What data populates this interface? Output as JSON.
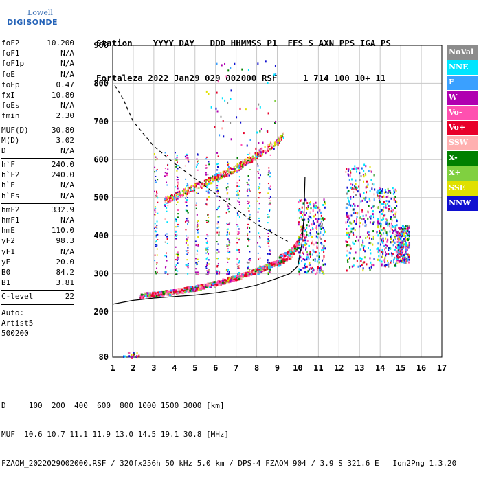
{
  "logo": {
    "top": "Lowell",
    "bottom": "DIGISONDE"
  },
  "header": {
    "line1": "Station    YYYY DAY   DDD HHMMSS P1  FFS S AXN PPS IGA PS",
    "line2": "Fortaleza 2022 Jan29 029 002000 RSF     1 714 100 10+ 11"
  },
  "params": [
    {
      "k": "foF2",
      "v": "10.200"
    },
    {
      "k": "foF1",
      "v": "N/A"
    },
    {
      "k": "foF1p",
      "v": "N/A"
    },
    {
      "k": "foE",
      "v": "N/A"
    },
    {
      "k": "foEp",
      "v": "0.47"
    },
    {
      "k": "fxI",
      "v": "10.80"
    },
    {
      "k": "foEs",
      "v": "N/A"
    },
    {
      "k": "fmin",
      "v": "2.30"
    },
    {
      "sep": true
    },
    {
      "k": "MUF(D)",
      "v": "30.80"
    },
    {
      "k": "M(D)",
      "v": "3.02"
    },
    {
      "k": "D",
      "v": "N/A"
    },
    {
      "sep": true
    },
    {
      "k": "h`F",
      "v": "240.0"
    },
    {
      "k": "h`F2",
      "v": "240.0"
    },
    {
      "k": "h`E",
      "v": "N/A"
    },
    {
      "k": "h`Es",
      "v": "N/A"
    },
    {
      "sep": true
    },
    {
      "k": "hmF2",
      "v": "332.9"
    },
    {
      "k": "hmF1",
      "v": "N/A"
    },
    {
      "k": "hmE",
      "v": "110.0"
    },
    {
      "k": "yF2",
      "v": "98.3"
    },
    {
      "k": "yF1",
      "v": "N/A"
    },
    {
      "k": "yE",
      "v": "20.0"
    },
    {
      "k": "B0",
      "v": "84.2"
    },
    {
      "k": "B1",
      "v": "3.81"
    },
    {
      "sep": true
    },
    {
      "k": "C-level",
      "v": "22"
    },
    {
      "sep": true
    }
  ],
  "auto": {
    "l1": "Auto:",
    "l2": "Artist5",
    "l3": "500200"
  },
  "legend": [
    {
      "label": "NoVal",
      "color": "#8c8c8c"
    },
    {
      "label": "NNE",
      "color": "#00e5ff"
    },
    {
      "label": "E",
      "color": "#3aa0ff"
    },
    {
      "label": "W",
      "color": "#b000b0"
    },
    {
      "label": "Vo-",
      "color": "#ff50b0"
    },
    {
      "label": "Vo+",
      "color": "#e8002a"
    },
    {
      "label": "SSW",
      "color": "#ffb0b0"
    },
    {
      "label": "X-",
      "color": "#008000"
    },
    {
      "label": "X+",
      "color": "#80d040"
    },
    {
      "label": "SSE",
      "color": "#e0e000"
    },
    {
      "label": "NNW",
      "color": "#1010d0"
    }
  ],
  "footer": {
    "l1": "D     100  200  400  600  800 1000 1500 3000 [km]",
    "l2": "MUF  10.6 10.7 11.1 11.9 13.0 14.5 19.1 30.8 [MHz]",
    "l3": "FZAOM_2022029002000.RSF / 320fx256h 50 kHz 5.0 km / DPS-4 FZAOM 904 / 3.9 S 321.6 E   Ion2Png 1.3.20"
  },
  "chart_data": {
    "type": "scatter",
    "xlim": [
      1,
      17
    ],
    "ylim": [
      80,
      900
    ],
    "xticks": [
      1,
      2,
      3,
      4,
      5,
      6,
      7,
      8,
      9,
      10,
      11,
      12,
      13,
      14,
      15,
      16,
      17
    ],
    "yticks": [
      80,
      200,
      300,
      400,
      500,
      600,
      700,
      800,
      900
    ],
    "grid": true,
    "series": [
      {
        "name": "NoVal",
        "color": "#8c8c8c"
      },
      {
        "name": "NNE",
        "color": "#00e5ff"
      },
      {
        "name": "E",
        "color": "#3aa0ff"
      },
      {
        "name": "W",
        "color": "#b000b0"
      },
      {
        "name": "Vo-",
        "color": "#ff50b0"
      },
      {
        "name": "Vo+",
        "color": "#e8002a"
      },
      {
        "name": "SSW",
        "color": "#ffb0b0"
      },
      {
        "name": "X-",
        "color": "#008000"
      },
      {
        "name": "X+",
        "color": "#80d040"
      },
      {
        "name": "SSE",
        "color": "#e0e000"
      },
      {
        "name": "NNW",
        "color": "#1010d0"
      }
    ],
    "ordinary_trace": [
      [
        2.3,
        242
      ],
      [
        3,
        246
      ],
      [
        4,
        252
      ],
      [
        5,
        262
      ],
      [
        6,
        274
      ],
      [
        7,
        290
      ],
      [
        8,
        308
      ],
      [
        9,
        330
      ],
      [
        9.6,
        350
      ],
      [
        10.0,
        375
      ],
      [
        10.2,
        420
      ]
    ],
    "extraordinary_trace": [
      [
        3.5,
        495
      ],
      [
        4,
        505
      ],
      [
        5,
        530
      ],
      [
        6,
        555
      ],
      [
        7,
        580
      ],
      [
        8,
        615
      ],
      [
        9,
        650
      ],
      [
        9.3,
        668
      ]
    ],
    "profile_curve": [
      [
        1,
        220
      ],
      [
        2,
        230
      ],
      [
        3,
        236
      ],
      [
        4,
        240
      ],
      [
        5,
        244
      ],
      [
        6,
        250
      ],
      [
        7,
        258
      ],
      [
        8,
        270
      ],
      [
        9,
        288
      ],
      [
        9.6,
        300
      ],
      [
        10.0,
        320
      ],
      [
        10.2,
        380
      ],
      [
        10.3,
        450
      ],
      [
        10.35,
        555
      ]
    ],
    "dashed_curve": [
      [
        1.1,
        795
      ],
      [
        1.5,
        760
      ],
      [
        2,
        700
      ],
      [
        3,
        635
      ],
      [
        4,
        590
      ],
      [
        5,
        550
      ],
      [
        6,
        510
      ],
      [
        7,
        470
      ],
      [
        8,
        430
      ],
      [
        9,
        400
      ],
      [
        9.5,
        385
      ]
    ],
    "spread_clusters": [
      {
        "x": [
          10,
          11.3
        ],
        "y": [
          300,
          500
        ]
      },
      {
        "x": [
          12.3,
          13.7
        ],
        "y": [
          310,
          590
        ]
      },
      {
        "x": [
          13.8,
          14.8
        ],
        "y": [
          320,
          530
        ]
      },
      {
        "x": [
          14.8,
          15.4
        ],
        "y": [
          330,
          430
        ]
      },
      {
        "x": [
          3,
          9
        ],
        "y": [
          300,
          620
        ]
      },
      {
        "x": [
          1.5,
          2.3
        ],
        "y": [
          80,
          95
        ]
      }
    ]
  }
}
